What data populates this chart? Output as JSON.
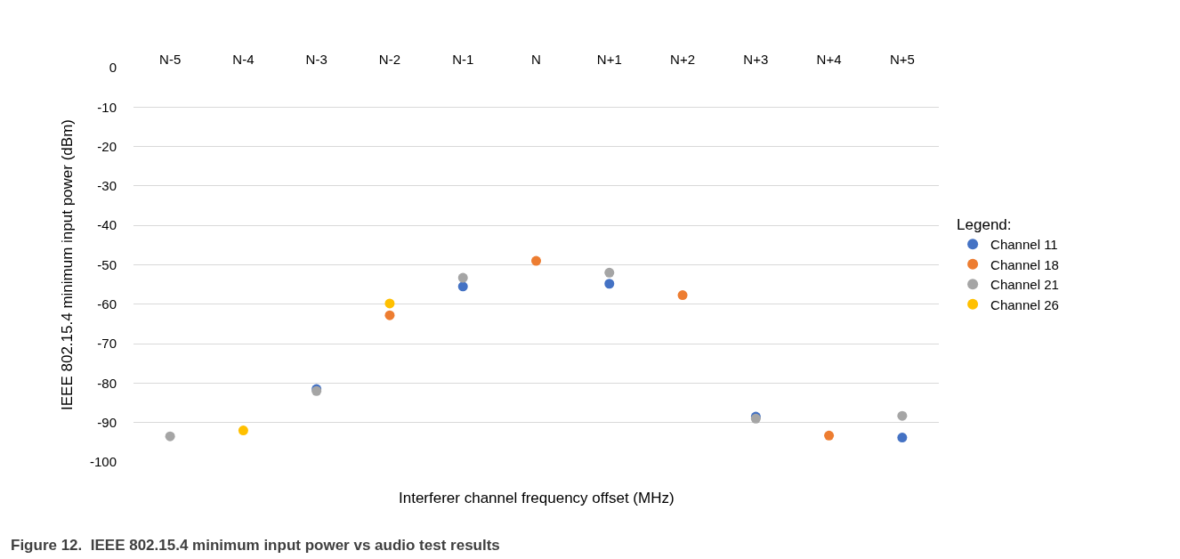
{
  "chart_data": {
    "type": "scatter",
    "categories": [
      "N-5",
      "N-4",
      "N-3",
      "N-2",
      "N-1",
      "N",
      "N+1",
      "N+2",
      "N+3",
      "N+4",
      "N+5"
    ],
    "series": [
      {
        "name": "Channel 11",
        "color": "#4472c4",
        "values": [
          null,
          null,
          -81.5,
          null,
          -55.5,
          null,
          -54.8,
          null,
          -88.5,
          null,
          -93.8
        ]
      },
      {
        "name": "Channel 18",
        "color": "#ed7d31",
        "values": [
          null,
          null,
          null,
          -62.8,
          null,
          -49,
          null,
          -57.7,
          null,
          -93.3,
          null
        ]
      },
      {
        "name": "Channel 21",
        "color": "#a5a5a5",
        "values": [
          -93.5,
          null,
          -82,
          null,
          -53.3,
          null,
          -52,
          null,
          -89,
          null,
          -88.3
        ]
      },
      {
        "name": "Channel 26",
        "color": "#ffc000",
        "values": [
          null,
          -92,
          null,
          -59.8,
          null,
          null,
          null,
          null,
          null,
          null,
          null
        ]
      }
    ],
    "ylim": [
      -100,
      0
    ],
    "yticks": [
      0,
      -10,
      -20,
      -30,
      -40,
      -50,
      -60,
      -70,
      -80,
      -90,
      -100
    ],
    "ylabel": "IEEE 802.15.4 minimum input power (dBm)",
    "xlabel": "Interferer channel frequency offset (MHz)",
    "legend_title": "Legend:",
    "legend": "right",
    "grid": "y",
    "marker": "circle",
    "annotations": [
      "Figure 12.  IEEE 802.15.4 minimum input power vs audio test results"
    ]
  }
}
